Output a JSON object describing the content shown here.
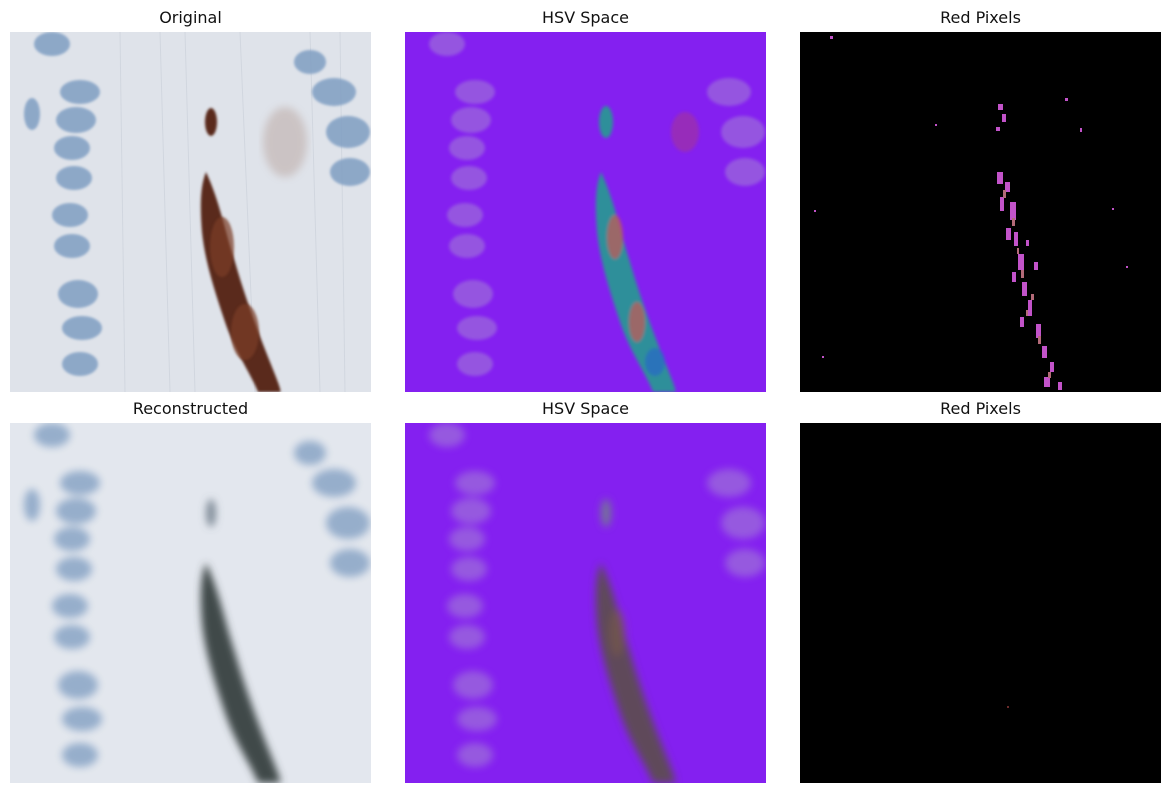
{
  "figure": {
    "panels": [
      {
        "title": "Original",
        "image": "original-tissue-image"
      },
      {
        "title": "HSV Space",
        "image": "hsv-original-image"
      },
      {
        "title": "Red Pixels",
        "image": "red-mask-original-image"
      },
      {
        "title": "Reconstructed",
        "image": "reconstructed-tissue-image"
      },
      {
        "title": "HSV Space",
        "image": "hsv-reconstructed-image"
      },
      {
        "title": "Red Pixels",
        "image": "red-mask-reconstructed-image"
      }
    ]
  },
  "colors": {
    "tissue_background": "#dfe3ea",
    "nucleus": "#7f9ec2",
    "stain_brown": "#5a2a1c",
    "reconstructed_stain": "#3f4a48",
    "hsv_background": "#8420f0",
    "hsv_nucleus": "#9a63dd",
    "hsv_stain_teal": "#2f8f9a",
    "hsv_stain_red": "#c05a55",
    "mask_background": "#000000",
    "mask_pixel": "#c253c9",
    "mask_pixel_alt": "#b36a78"
  }
}
